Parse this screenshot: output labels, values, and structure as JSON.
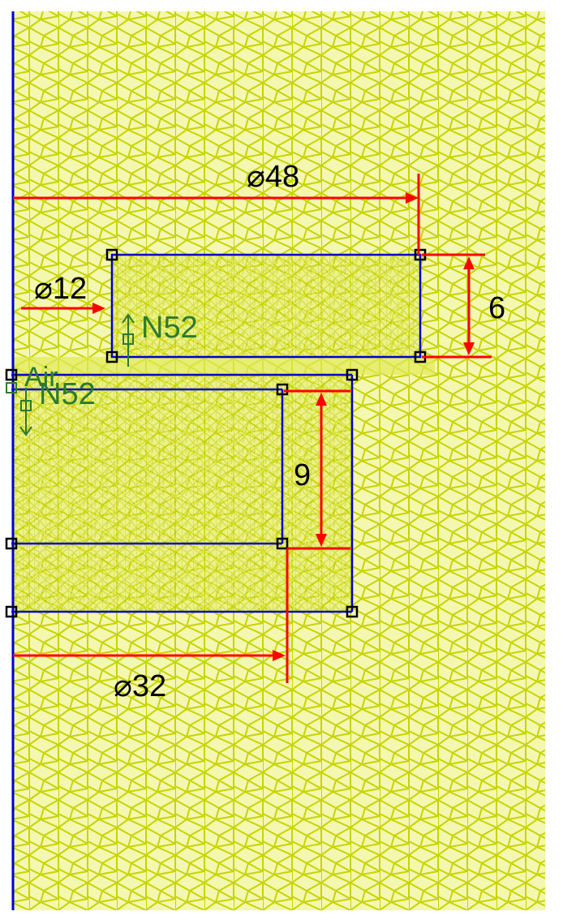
{
  "dimensions": {
    "outer_diameter": "⌀48",
    "inner_diameter_upper": "⌀12",
    "inner_diameter_lower": "⌀32",
    "upper_height": "6",
    "lower_height": "9"
  },
  "materials": {
    "upper_magnet": "N52",
    "lower_magnet": "N52",
    "gap": "Air"
  },
  "icons": {
    "magnetization_up": "arrow-up-icon",
    "magnetization_down": "arrow-down-icon",
    "node": "node-square-icon"
  },
  "colors": {
    "mesh": "#c8d400",
    "background": "#f5f9a0",
    "boundary": "#0000cc",
    "dimension": "#ff0000",
    "label": "#2d7a2d",
    "node": "#000000"
  }
}
